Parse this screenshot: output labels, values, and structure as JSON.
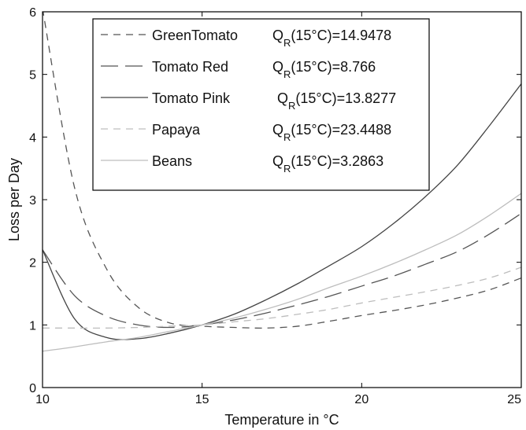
{
  "chart_data": {
    "type": "line",
    "xlabel": "Temperature in °C",
    "ylabel": "Loss per Day",
    "xlim": [
      10,
      25
    ],
    "ylim": [
      0,
      6
    ],
    "xticks": [
      10,
      15,
      20,
      25
    ],
    "yticks": [
      0,
      1,
      2,
      3,
      4,
      5,
      6
    ],
    "grid": false,
    "legend_position": "top-center",
    "x": [
      10,
      11,
      12,
      13,
      14,
      15,
      16,
      17,
      18,
      19,
      20,
      21,
      22,
      23,
      24,
      25
    ],
    "series": [
      {
        "name": "GreenTomato",
        "q_label": "Q",
        "q_sub": "R",
        "q_value": "(15°C)=14.9478",
        "style": "dash",
        "color": "#555555",
        "values": [
          6.05,
          3.2,
          1.9,
          1.28,
          1.03,
          0.98,
          0.96,
          0.95,
          0.98,
          1.06,
          1.15,
          1.23,
          1.32,
          1.43,
          1.56,
          1.75
        ]
      },
      {
        "name": "Tomato Red",
        "q_label": "Q",
        "q_sub": "R",
        "q_value": "(15°C)=8.766",
        "style": "longdash",
        "color": "#555555",
        "values": [
          2.2,
          1.47,
          1.14,
          1.0,
          0.96,
          1.0,
          1.08,
          1.19,
          1.32,
          1.46,
          1.62,
          1.78,
          1.97,
          2.17,
          2.45,
          2.78
        ]
      },
      {
        "name": "Tomato Pink",
        "q_label": "Q",
        "q_sub": "R",
        "q_value": "(15°C)=13.8277",
        "style": "solid",
        "color": "#444444",
        "values": [
          2.2,
          1.1,
          0.8,
          0.78,
          0.87,
          1.0,
          1.17,
          1.4,
          1.66,
          1.95,
          2.25,
          2.62,
          3.05,
          3.55,
          4.18,
          4.85
        ]
      },
      {
        "name": "Papaya",
        "q_label": "Q",
        "q_sub": "R",
        "q_value": "(15°C)=23.4488",
        "style": "dash",
        "color": "#bdbdbd",
        "values": [
          0.95,
          0.95,
          0.95,
          0.96,
          0.98,
          1.0,
          1.05,
          1.1,
          1.17,
          1.25,
          1.35,
          1.44,
          1.53,
          1.63,
          1.75,
          1.92
        ]
      },
      {
        "name": "Beans",
        "q_label": "Q",
        "q_sub": "R",
        "q_value": "(15°C)=3.2863",
        "style": "solid",
        "color": "#bdbdbd",
        "values": [
          0.58,
          0.65,
          0.73,
          0.8,
          0.9,
          1.0,
          1.11,
          1.25,
          1.41,
          1.6,
          1.78,
          1.98,
          2.2,
          2.44,
          2.75,
          3.1
        ]
      }
    ]
  }
}
